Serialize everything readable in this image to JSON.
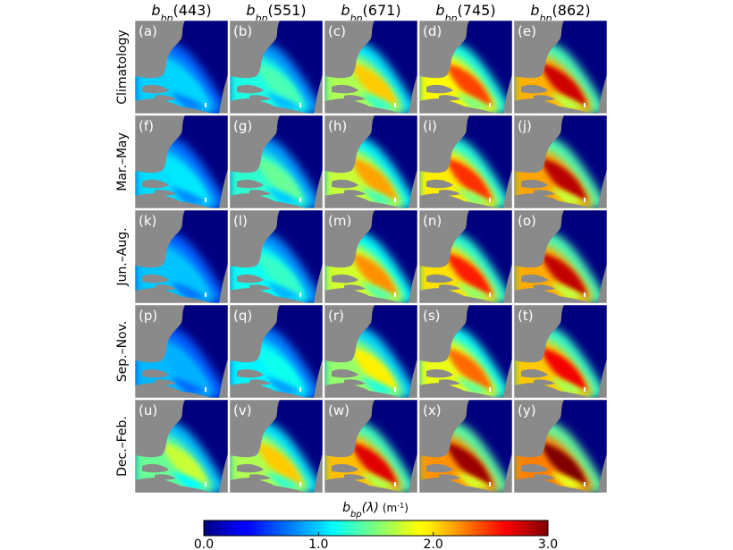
{
  "chart_data": {
    "type": "heatmap",
    "columns": [
      {
        "base": "b",
        "sub": "bp",
        "rest": "(443)"
      },
      {
        "base": "b",
        "sub": "bp",
        "rest": "(551)"
      },
      {
        "base": "b",
        "sub": "bp",
        "rest": "(671)"
      },
      {
        "base": "b",
        "sub": "bp",
        "rest": "(745)"
      },
      {
        "base": "b",
        "sub": "bp",
        "rest": "(862)"
      }
    ],
    "rows": [
      "Climatology",
      "Mar.–May",
      "Jun.–Aug.",
      "Sep.–Nov.",
      "Dec.–Feb."
    ],
    "panels": [
      "(a)",
      "(b)",
      "(c)",
      "(d)",
      "(e)",
      "(f)",
      "(g)",
      "(h)",
      "(i)",
      "(j)",
      "(k)",
      "(l)",
      "(m)",
      "(n)",
      "(o)",
      "(p)",
      "(q)",
      "(r)",
      "(s)",
      "(t)",
      "(u)",
      "(v)",
      "(w)",
      "(x)",
      "(y)"
    ],
    "intensity": [
      [
        0.3,
        0.42,
        0.66,
        0.8,
        0.92
      ],
      [
        0.32,
        0.45,
        0.7,
        0.82,
        0.94
      ],
      [
        0.28,
        0.4,
        0.72,
        0.84,
        0.93
      ],
      [
        0.26,
        0.36,
        0.62,
        0.76,
        0.88
      ],
      [
        0.55,
        0.66,
        0.9,
        0.97,
        1.0
      ]
    ],
    "colorbar": {
      "title_base": "b",
      "title_sub": "bp",
      "title_arg": "(λ)",
      "title_unit": " (m-1)",
      "unit_base": "m",
      "unit_exp": "-1",
      "ticks": [
        "0.0",
        "1.0",
        "2.0",
        "3.0"
      ],
      "range": [
        0,
        3
      ],
      "colormap": "jet"
    },
    "colors": {
      "land": "#8a8a8a",
      "ocean_deep": "#00007f",
      "panel_letter": "#ffffff"
    }
  }
}
